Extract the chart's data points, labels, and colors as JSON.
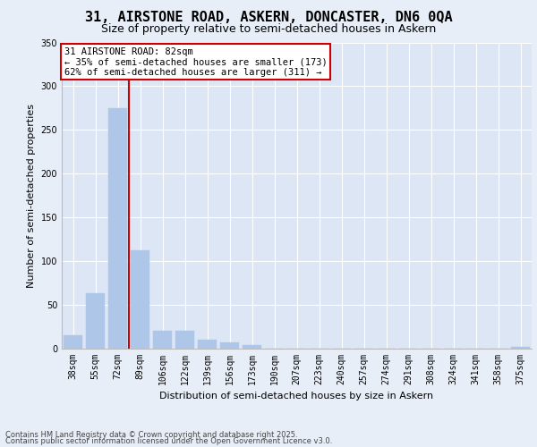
{
  "title_line1": "31, AIRSTONE ROAD, ASKERN, DONCASTER, DN6 0QA",
  "title_line2": "Size of property relative to semi-detached houses in Askern",
  "xlabel": "Distribution of semi-detached houses by size in Askern",
  "ylabel": "Number of semi-detached properties",
  "categories": [
    "38sqm",
    "55sqm",
    "72sqm",
    "89sqm",
    "106sqm",
    "122sqm",
    "139sqm",
    "156sqm",
    "173sqm",
    "190sqm",
    "207sqm",
    "223sqm",
    "240sqm",
    "257sqm",
    "274sqm",
    "291sqm",
    "308sqm",
    "324sqm",
    "341sqm",
    "358sqm",
    "375sqm"
  ],
  "values": [
    15,
    63,
    275,
    112,
    20,
    20,
    10,
    7,
    4,
    0,
    0,
    0,
    0,
    0,
    0,
    0,
    0,
    0,
    0,
    0,
    2
  ],
  "bar_color": "#aec6e8",
  "bar_edge_color": "#aec6e8",
  "bg_color": "#dce6f5",
  "fig_bg_color": "#e8eef8",
  "grid_color": "#ffffff",
  "vline_color": "#cc0000",
  "vline_x_index": 2,
  "annotation_text": "31 AIRSTONE ROAD: 82sqm\n← 35% of semi-detached houses are smaller (173)\n62% of semi-detached houses are larger (311) →",
  "annotation_box_color": "#cc0000",
  "ylim": [
    0,
    350
  ],
  "yticks": [
    0,
    50,
    100,
    150,
    200,
    250,
    300,
    350
  ],
  "footer_line1": "Contains HM Land Registry data © Crown copyright and database right 2025.",
  "footer_line2": "Contains public sector information licensed under the Open Government Licence v3.0.",
  "title_fontsize": 11,
  "subtitle_fontsize": 9,
  "axis_label_fontsize": 8,
  "tick_fontsize": 7,
  "footer_fontsize": 6,
  "annotation_fontsize": 7.5
}
